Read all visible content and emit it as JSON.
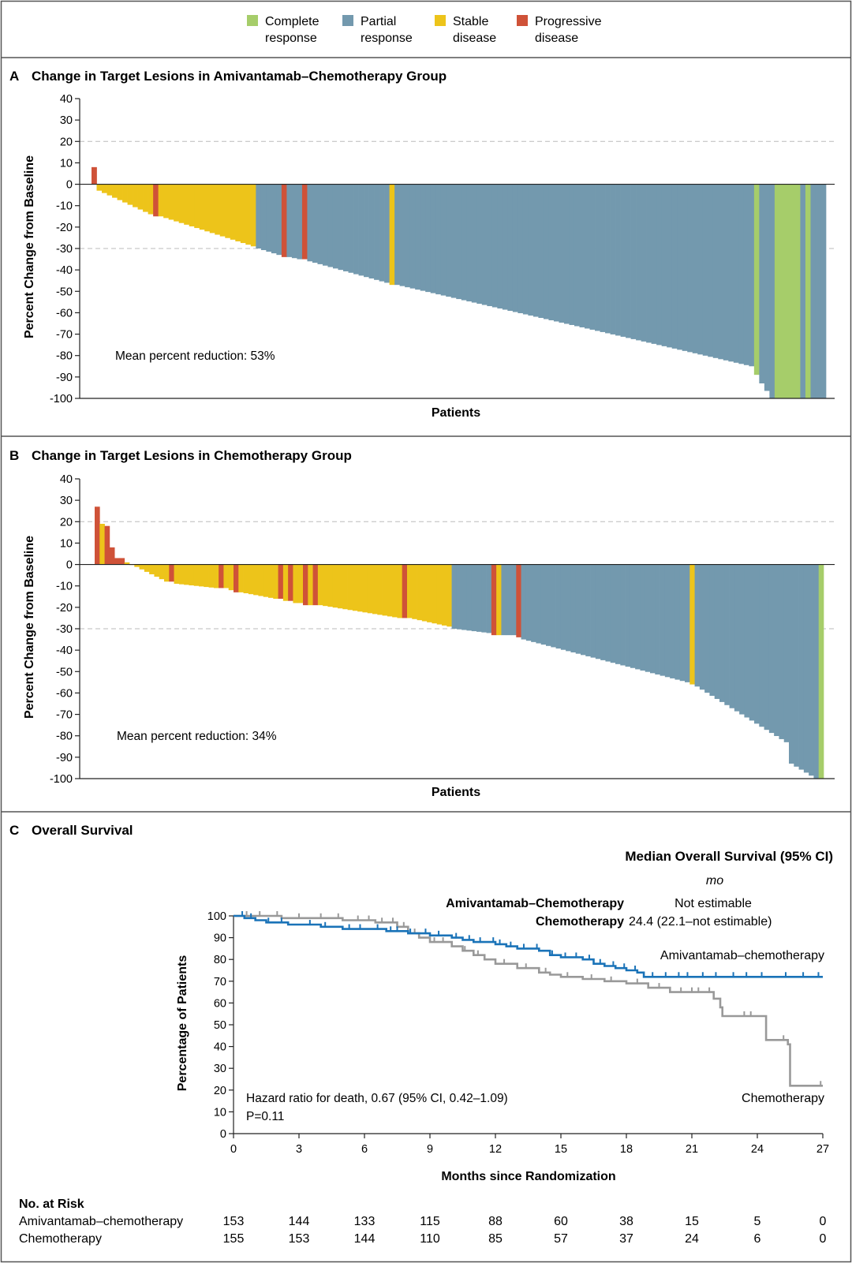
{
  "legend": {
    "items": [
      {
        "line1": "Complete",
        "line2": "response",
        "color": "#a6cd6a"
      },
      {
        "line1": "Partial",
        "line2": "response",
        "color": "#7399ae"
      },
      {
        "line1": "Stable",
        "line2": "disease",
        "color": "#edc41a"
      },
      {
        "line1": "Progressive",
        "line2": "disease",
        "color": "#cf5238"
      }
    ]
  },
  "panelA": {
    "letter": "A",
    "title": "Change in Target Lesions in Amivantamab–Chemotherapy Group",
    "annotation": "Mean percent reduction: 53%"
  },
  "panelB": {
    "letter": "B",
    "title": "Change in Target Lesions in Chemotherapy Group",
    "annotation": "Mean percent reduction: 34%"
  },
  "panelC": {
    "letter": "C",
    "title": "Overall Survival",
    "median_header": "Median Overall Survival (95% CI)",
    "median_unit": "mo",
    "median_rows": [
      {
        "group": "Amivantamab–Chemotherapy",
        "value": "Not estimable"
      },
      {
        "group": "Chemotherapy",
        "value": "24.4 (22.1–not estimable)"
      }
    ],
    "hazard_text": "Hazard ratio for death, 0.67 (95% CI, 0.42–1.09)",
    "p_text": "P=0.11",
    "curve_label_ami": "Amivantamab–chemotherapy",
    "curve_label_chemo": "Chemotherapy",
    "risk_title": "No. at Risk",
    "risk_rows": [
      {
        "label": "Amivantamab–chemotherapy",
        "values": [
          "153",
          "144",
          "133",
          "115",
          "88",
          "60",
          "38",
          "15",
          "5",
          "0"
        ]
      },
      {
        "label": "Chemotherapy",
        "values": [
          "155",
          "153",
          "144",
          "110",
          "85",
          "57",
          "37",
          "24",
          "6",
          "0"
        ]
      }
    ]
  },
  "chart_data": [
    {
      "type": "bar",
      "title": "Change in Target Lesions in Amivantamab–Chemotherapy Group",
      "xlabel": "Patients",
      "ylabel": "Percent Change from Baseline",
      "ylim": [
        -100,
        40
      ],
      "yticks": [
        40,
        30,
        20,
        10,
        0,
        -10,
        -20,
        -30,
        -40,
        -50,
        -60,
        -70,
        -80,
        -90,
        -100
      ],
      "reference_lines": [
        20,
        -30
      ],
      "categories_legend": [
        "Complete response",
        "Partial response",
        "Stable disease",
        "Progressive disease"
      ],
      "segments": [
        {
          "category": "Progressive disease",
          "count": 1,
          "start": 8,
          "end": 8
        },
        {
          "category": "Stable disease",
          "count": 11,
          "start": -3,
          "end": -14
        },
        {
          "category": "Progressive disease",
          "count": 1,
          "start": -15,
          "end": -15
        },
        {
          "category": "Stable disease",
          "count": 19,
          "start": -15,
          "end": -29
        },
        {
          "category": "Partial response",
          "count": 5,
          "start": -30,
          "end": -33
        },
        {
          "category": "Progressive disease",
          "count": 1,
          "start": -34,
          "end": -34
        },
        {
          "category": "Partial response",
          "count": 3,
          "start": -34,
          "end": -35
        },
        {
          "category": "Progressive disease",
          "count": 1,
          "start": -35,
          "end": -35
        },
        {
          "category": "Partial response",
          "count": 16,
          "start": -36,
          "end": -46
        },
        {
          "category": "Stable disease",
          "count": 1,
          "start": -47,
          "end": -47
        },
        {
          "category": "Partial response",
          "count": 70,
          "start": -47,
          "end": -85
        },
        {
          "category": "Complete response",
          "count": 1,
          "start": -89,
          "end": -89
        },
        {
          "category": "Partial response",
          "count": 3,
          "start": -93,
          "end": -100
        },
        {
          "category": "Complete response",
          "count": 5,
          "start": -100,
          "end": -100
        },
        {
          "category": "Partial response",
          "count": 1,
          "start": -100,
          "end": -100
        },
        {
          "category": "Complete response",
          "count": 1,
          "start": -100,
          "end": -100
        },
        {
          "category": "Partial response",
          "count": 3,
          "start": -100,
          "end": -100
        }
      ],
      "annotation": "Mean percent reduction: 53%"
    },
    {
      "type": "bar",
      "title": "Change in Target Lesions in Chemotherapy Group",
      "xlabel": "Patients",
      "ylabel": "Percent Change from Baseline",
      "ylim": [
        -100,
        40
      ],
      "yticks": [
        40,
        30,
        20,
        10,
        0,
        -10,
        -20,
        -30,
        -40,
        -50,
        -60,
        -70,
        -80,
        -90,
        -100
      ],
      "reference_lines": [
        20,
        -30
      ],
      "segments": [
        {
          "category": "Progressive disease",
          "count": 1,
          "start": 27,
          "end": 27
        },
        {
          "category": "Stable disease",
          "count": 1,
          "start": 19,
          "end": 19
        },
        {
          "category": "Progressive disease",
          "count": 1,
          "start": 18,
          "end": 18
        },
        {
          "category": "Progressive disease",
          "count": 1,
          "start": 8,
          "end": 8
        },
        {
          "category": "Progressive disease",
          "count": 2,
          "start": 3,
          "end": 3
        },
        {
          "category": "Stable disease",
          "count": 1,
          "start": 1,
          "end": 1
        },
        {
          "category": "Stable disease",
          "count": 8,
          "start": 0,
          "end": -8
        },
        {
          "category": "Progressive disease",
          "count": 1,
          "start": -8,
          "end": -8
        },
        {
          "category": "Stable disease",
          "count": 9,
          "start": -9,
          "end": -11
        },
        {
          "category": "Progressive disease",
          "count": 1,
          "start": -11,
          "end": -11
        },
        {
          "category": "Stable disease",
          "count": 2,
          "start": -11,
          "end": -12
        },
        {
          "category": "Progressive disease",
          "count": 1,
          "start": -13,
          "end": -13
        },
        {
          "category": "Stable disease",
          "count": 8,
          "start": -13,
          "end": -16
        },
        {
          "category": "Progressive disease",
          "count": 1,
          "start": -16,
          "end": -16
        },
        {
          "category": "Stable disease",
          "count": 1,
          "start": -17,
          "end": -17
        },
        {
          "category": "Progressive disease",
          "count": 1,
          "start": -17,
          "end": -17
        },
        {
          "category": "Stable disease",
          "count": 2,
          "start": -18,
          "end": -18
        },
        {
          "category": "Progressive disease",
          "count": 1,
          "start": -19,
          "end": -19
        },
        {
          "category": "Stable disease",
          "count": 1,
          "start": -19,
          "end": -19
        },
        {
          "category": "Progressive disease",
          "count": 1,
          "start": -19,
          "end": -19
        },
        {
          "category": "Stable disease",
          "count": 17,
          "start": -19,
          "end": -25
        },
        {
          "category": "Progressive disease",
          "count": 1,
          "start": -25,
          "end": -25
        },
        {
          "category": "Stable disease",
          "count": 9,
          "start": -25,
          "end": -29
        },
        {
          "category": "Partial response",
          "count": 8,
          "start": -30,
          "end": -32
        },
        {
          "category": "Progressive disease",
          "count": 1,
          "start": -33,
          "end": -33
        },
        {
          "category": "Stable disease",
          "count": 1,
          "start": -33,
          "end": -33
        },
        {
          "category": "Partial response",
          "count": 3,
          "start": -33,
          "end": -33
        },
        {
          "category": "Progressive disease",
          "count": 1,
          "start": -34,
          "end": -34
        },
        {
          "category": "Partial response",
          "count": 34,
          "start": -35,
          "end": -55
        },
        {
          "category": "Stable disease",
          "count": 1,
          "start": -56,
          "end": -56
        },
        {
          "category": "Partial response",
          "count": 19,
          "start": -57,
          "end": -83
        },
        {
          "category": "Partial response",
          "count": 6,
          "start": -93,
          "end": -100
        },
        {
          "category": "Complete response",
          "count": 1,
          "start": -100,
          "end": -100
        }
      ],
      "annotation": "Mean percent reduction: 34%"
    },
    {
      "type": "line",
      "title": "Overall Survival",
      "xlabel": "Months since Randomization",
      "ylabel": "Percentage of Patients",
      "xlim": [
        0,
        27
      ],
      "ylim": [
        0,
        100
      ],
      "xticks": [
        0,
        3,
        6,
        9,
        12,
        15,
        18,
        21,
        24,
        27
      ],
      "yticks": [
        0,
        10,
        20,
        30,
        40,
        50,
        60,
        70,
        80,
        90,
        100
      ],
      "series": [
        {
          "name": "Amivantamab–chemotherapy",
          "color": "#1a73b8",
          "points": [
            [
              0,
              100
            ],
            [
              0.5,
              99
            ],
            [
              1,
              98
            ],
            [
              1.5,
              97
            ],
            [
              2.5,
              96
            ],
            [
              4,
              95
            ],
            [
              5,
              94
            ],
            [
              7,
              93
            ],
            [
              8,
              92
            ],
            [
              9,
              91
            ],
            [
              10,
              90
            ],
            [
              10.5,
              89
            ],
            [
              11,
              88
            ],
            [
              12,
              87
            ],
            [
              12.5,
              86
            ],
            [
              13,
              85
            ],
            [
              14,
              84
            ],
            [
              14.5,
              82
            ],
            [
              15,
              81
            ],
            [
              16,
              80
            ],
            [
              16.5,
              78
            ],
            [
              17,
              77
            ],
            [
              17.5,
              76
            ],
            [
              18,
              75
            ],
            [
              18.5,
              74
            ],
            [
              18.8,
              72
            ],
            [
              27,
              72
            ]
          ],
          "censor_times": [
            0.4,
            0.8,
            1.6,
            2.2,
            3.5,
            4.2,
            5.3,
            5.8,
            6.6,
            7.2,
            7.5,
            8.1,
            8.8,
            9.4,
            10.2,
            10.8,
            11.3,
            11.9,
            12.2,
            12.7,
            13.3,
            13.9,
            14.6,
            15.2,
            15.7,
            16.3,
            16.8,
            17.4,
            17.9,
            18.4,
            19.2,
            19.8,
            20.4,
            20.8,
            21.5,
            22.1,
            22.9,
            23.5,
            24.2,
            25.3,
            26.1,
            26.8
          ]
        },
        {
          "name": "Chemotherapy",
          "color": "#999999",
          "points": [
            [
              0,
              100
            ],
            [
              1.5,
              100
            ],
            [
              2.2,
              99
            ],
            [
              5,
              98
            ],
            [
              6.5,
              97
            ],
            [
              7.5,
              95
            ],
            [
              8,
              92
            ],
            [
              8.5,
              90
            ],
            [
              9,
              88
            ],
            [
              10,
              86
            ],
            [
              10.5,
              84
            ],
            [
              11,
              82
            ],
            [
              11.5,
              80
            ],
            [
              12,
              78
            ],
            [
              13,
              76
            ],
            [
              14,
              74
            ],
            [
              14.5,
              73
            ],
            [
              15,
              72
            ],
            [
              16,
              71
            ],
            [
              17,
              70
            ],
            [
              18,
              69
            ],
            [
              19,
              67
            ],
            [
              20,
              65
            ],
            [
              21.5,
              65
            ],
            [
              22,
              62
            ],
            [
              22.3,
              58
            ],
            [
              22.4,
              54
            ],
            [
              24,
              54
            ],
            [
              24.4,
              43
            ],
            [
              25.3,
              43
            ],
            [
              25.4,
              41
            ],
            [
              25.5,
              22
            ],
            [
              27,
              22
            ]
          ],
          "censor_times": [
            0.6,
            1.2,
            2.0,
            3.0,
            4.0,
            4.8,
            5.7,
            6.2,
            6.8,
            7.3,
            7.8,
            8.3,
            9.2,
            9.6,
            10.6,
            11.2,
            12.4,
            13.4,
            14.3,
            15.3,
            16.4,
            17.3,
            18.5,
            19.5,
            20.5,
            21.0,
            21.3,
            21.8,
            23.4,
            23.7,
            25.2,
            26.9
          ]
        }
      ],
      "risk_times": [
        0,
        3,
        6,
        9,
        12,
        15,
        18,
        21,
        24,
        27
      ]
    }
  ]
}
